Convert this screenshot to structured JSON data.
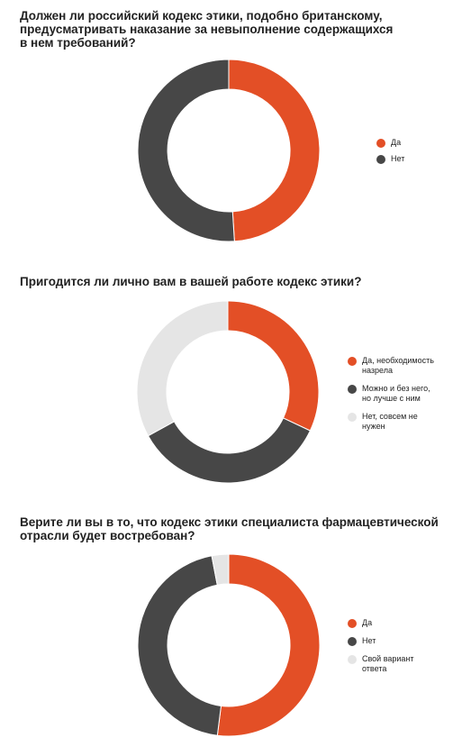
{
  "colors": {
    "accent": "#e34f26",
    "dark": "#474747",
    "light": "#e5e5e5"
  },
  "chart_data": [
    {
      "type": "pie",
      "title": "Должен ли российский кодекс этики, подобно британскому,\nпредусматривать наказание за невыполнение содержащихся\nв нем требований?",
      "categories": [
        "Да",
        "Нет"
      ],
      "values": [
        49,
        51
      ],
      "colors": [
        "#e34f26",
        "#474747"
      ],
      "legend_position": "right"
    },
    {
      "type": "pie",
      "title": "Пригодится ли лично вам в вашей работе кодекс этики?",
      "categories": [
        "Да, необходимость\nназрела",
        "Можно и без него,\nно лучше с ним",
        "Нет, совсем не\nнужен"
      ],
      "values": [
        32,
        35,
        33
      ],
      "colors": [
        "#e34f26",
        "#474747",
        "#e5e5e5"
      ],
      "legend_position": "right"
    },
    {
      "type": "pie",
      "title": "Верите ли вы в то, что кодекс этики специалиста фармацевтической\nотрасли будет востребован?",
      "categories": [
        "Да",
        "Нет",
        "Свой вариант\nответа"
      ],
      "values": [
        52,
        45,
        3
      ],
      "colors": [
        "#e34f26",
        "#474747",
        "#e5e5e5"
      ],
      "legend_position": "right"
    }
  ]
}
